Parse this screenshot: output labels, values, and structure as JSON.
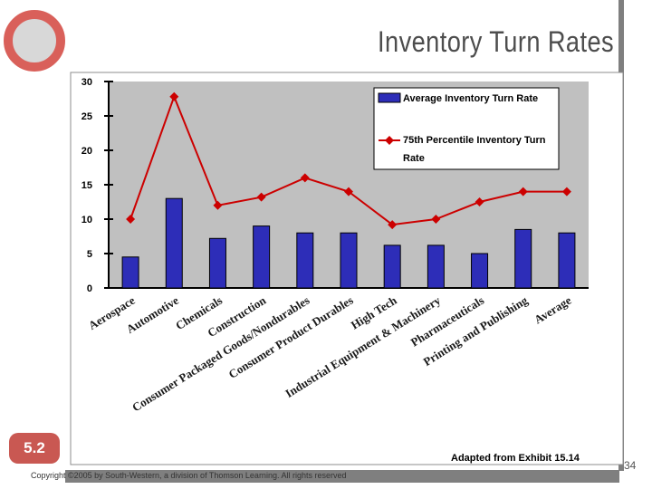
{
  "slide": {
    "title": "Inventory Turn Rates",
    "section": "5.2",
    "source_note": "Adapted from Exhibit 15.14",
    "copyright": "Copyright ©2005 by South-Western, a division of Thomson Learning. All rights reserved",
    "page_number": "34"
  },
  "colors": {
    "bar": "#2d2db8",
    "line": "#cc0000",
    "plot_bg": "#c0c0c0"
  },
  "chart_data": {
    "type": "bar",
    "title": "",
    "xlabel": "",
    "ylabel": "",
    "ylim": [
      0,
      30
    ],
    "yticks": [
      "0",
      "5",
      "10",
      "15",
      "20",
      "25",
      "30"
    ],
    "categories": [
      "Aerospace",
      "Automotive",
      "Chemicals",
      "Construction",
      "Consumer Packaged Goods/Nondurables",
      "Consumer Product Durables",
      "High Tech",
      "Industrial Equipment & Machinery",
      "Pharmaceuticals",
      "Printing and Publishing",
      "Average"
    ],
    "series": [
      {
        "name": "Average Inventory Turn Rate",
        "type": "bar",
        "values": [
          4.5,
          13,
          7.2,
          9,
          8,
          8,
          6.2,
          6.2,
          5,
          8.5,
          8
        ]
      },
      {
        "name": "75th Percentile Inventory Turn Rate",
        "type": "line",
        "values": [
          10,
          27.8,
          12,
          13.2,
          16,
          14,
          9.2,
          10,
          12.5,
          14,
          14
        ]
      }
    ],
    "legend": [
      {
        "label": "Average Inventory Turn Rate"
      },
      {
        "label": "75th Percentile Inventory Turn",
        "label2": "Rate"
      }
    ],
    "legend_position": "top-right"
  }
}
